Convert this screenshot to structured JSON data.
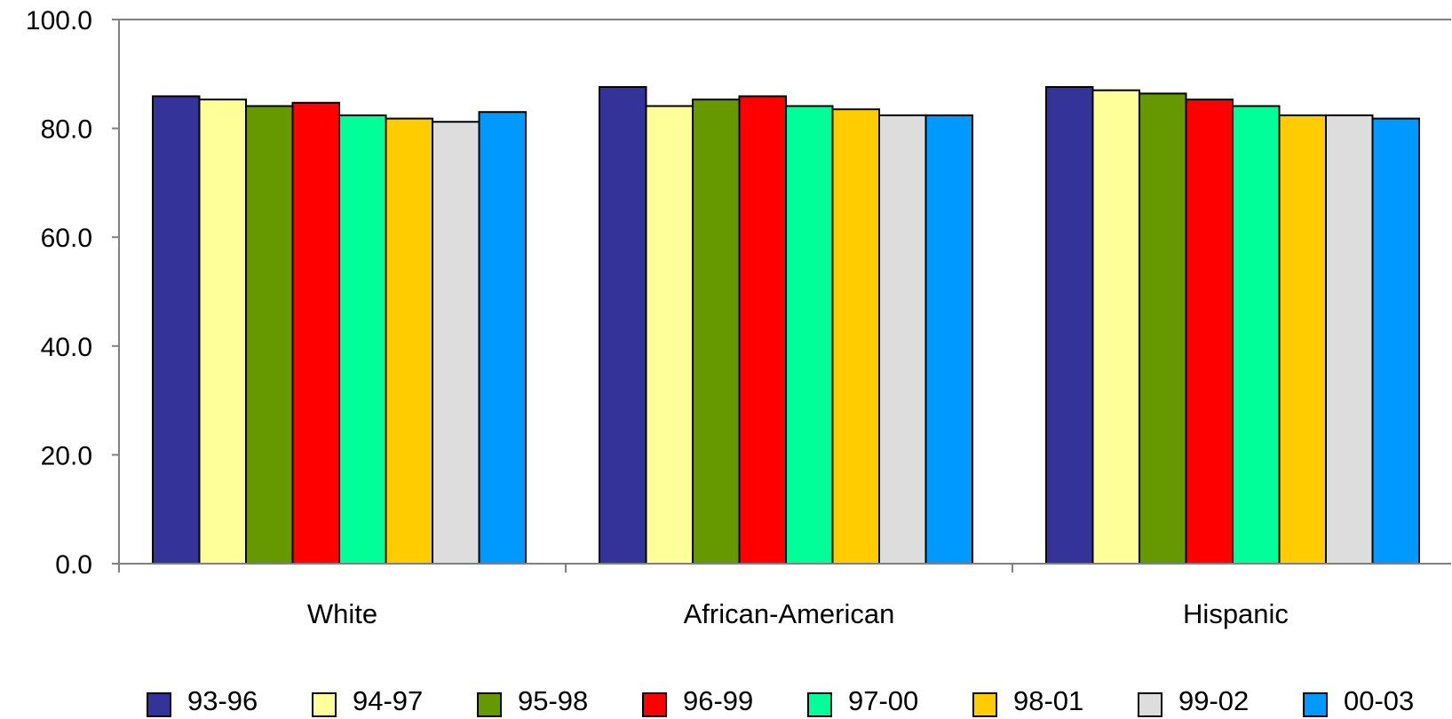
{
  "chart_data": {
    "type": "bar",
    "categories": [
      "White",
      "African-American",
      "Hispanic"
    ],
    "series": [
      {
        "name": "93-96",
        "color": "#333399",
        "values": [
          85.9,
          87.6,
          87.6
        ]
      },
      {
        "name": "94-97",
        "color": "#FFFF99",
        "values": [
          85.3,
          84.1,
          87.0
        ]
      },
      {
        "name": "95-98",
        "color": "#669900",
        "values": [
          84.1,
          85.3,
          86.4
        ]
      },
      {
        "name": "96-99",
        "color": "#FF0000",
        "values": [
          84.7,
          85.9,
          85.3
        ]
      },
      {
        "name": "97-00",
        "color": "#00FF99",
        "values": [
          82.4,
          84.1,
          84.1
        ]
      },
      {
        "name": "98-01",
        "color": "#FFCC00",
        "values": [
          81.8,
          83.5,
          82.4
        ]
      },
      {
        "name": "99-02",
        "color": "#DDDDDD",
        "values": [
          81.2,
          82.4,
          82.4
        ]
      },
      {
        "name": "00-03",
        "color": "#0099FF",
        "values": [
          83.0,
          82.4,
          81.8
        ]
      }
    ],
    "yticks": [
      "0.0",
      "20.0",
      "40.0",
      "60.0",
      "80.0",
      "100.0"
    ],
    "ylim": [
      0,
      100
    ],
    "title": "",
    "xlabel": "",
    "ylabel": "",
    "grid": false,
    "legend_position": "bottom"
  }
}
